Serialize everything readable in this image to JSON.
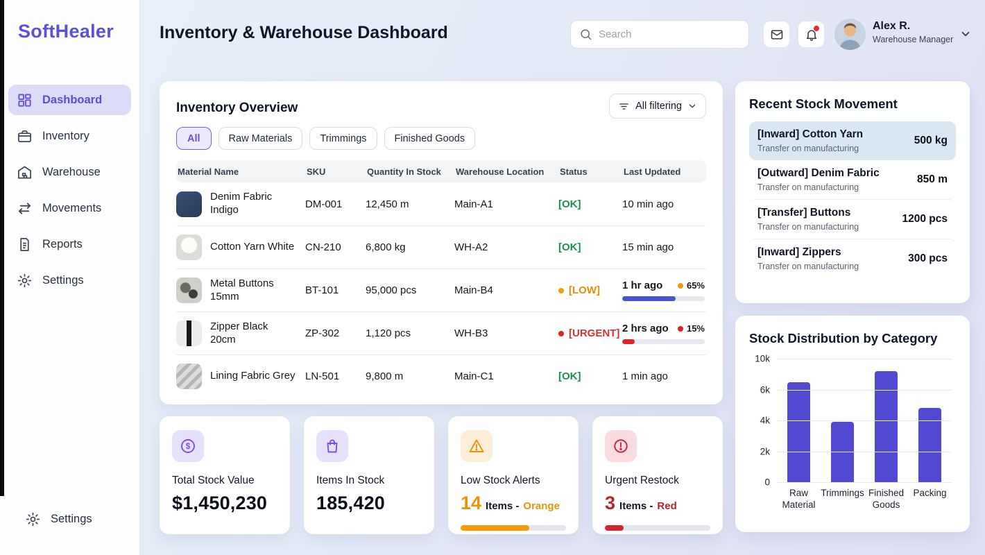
{
  "colors": {
    "accent": "#5b50dd",
    "status_ok": "#17904f",
    "status_low": "#e0900e",
    "status_urgent": "#d43330",
    "progress_blue": "#4553d6",
    "bar_indigo": "#5149d1",
    "left_edge": "#0c0c0c"
  },
  "sidebar": {
    "logo": "SoftHealer",
    "items": [
      {
        "label": "Dashboard",
        "icon": "dashboard-grid-icon",
        "active": true
      },
      {
        "label": "Inventory",
        "icon": "briefcase-icon",
        "active": false
      },
      {
        "label": "Warehouse",
        "icon": "warehouse-icon",
        "active": false
      },
      {
        "label": "Movements",
        "icon": "transfer-arrows-icon",
        "active": false
      },
      {
        "label": "Reports",
        "icon": "document-icon",
        "active": false
      },
      {
        "label": "Settings",
        "icon": "gear-icon",
        "active": false
      }
    ],
    "footer_item": {
      "label": "Settings",
      "icon": "gear-icon"
    }
  },
  "header": {
    "title": "Inventory & Warehouse Dashboard",
    "search_placeholder": "Search",
    "user": {
      "name": "Alex R.",
      "role": "Warehouse Manager"
    },
    "bell_has_unread": true
  },
  "inventory": {
    "title": "Inventory Overview",
    "filter_button_label": "All filtering",
    "tabs": [
      {
        "label": "All",
        "active": true
      },
      {
        "label": "Raw Materials",
        "active": false
      },
      {
        "label": "Trimmings",
        "active": false
      },
      {
        "label": "Finished Goods",
        "active": false
      }
    ],
    "columns": [
      "Material Name",
      "SKU",
      "Quantity In Stock",
      "Warehouse Location",
      "Status",
      "Last Updated"
    ],
    "rows": [
      {
        "name": "Denim Fabric Indigo",
        "sku": "DM-001",
        "qty": "12,450 m",
        "location": "Main-A1",
        "status": "OK",
        "status_label": "[OK]",
        "updated": "10 min ago",
        "thumb": "denim"
      },
      {
        "name": "Cotton Yarn White",
        "sku": "CN-210",
        "qty": "6,800 kg",
        "location": "WH-A2",
        "status": "OK",
        "status_label": "[OK]",
        "updated": "15 min ago",
        "thumb": "yarn"
      },
      {
        "name": "Metal Buttons 15mm",
        "sku": "BT-101",
        "qty": "95,000 pcs",
        "location": "Main-B4",
        "status": "LOW",
        "status_label": "[LOW]",
        "updated": "1 hr ago",
        "percent": "65%",
        "progress": 65,
        "thumb": "buttons"
      },
      {
        "name": "Zipper Black 20cm",
        "sku": "ZP-302",
        "qty": "1,120 pcs",
        "location": "WH-B3",
        "status": "URGENT",
        "status_label": "[URGENT]",
        "updated": "2 hrs ago",
        "percent": "15%",
        "progress": 15,
        "thumb": "zipper"
      },
      {
        "name": "Lining Fabric Grey",
        "sku": "LN-501",
        "qty": "9,800 m",
        "location": "Main-C1",
        "status": "OK",
        "status_label": "[OK]",
        "updated": "1 min ago",
        "thumb": "lining"
      }
    ]
  },
  "stats": [
    {
      "label": "Total Stock Value",
      "value": "$1,450,230",
      "icon": "dollar-circle-icon",
      "theme": "purple"
    },
    {
      "label": "Items In Stock",
      "value": "185,420",
      "icon": "shopping-bag-icon",
      "theme": "purple"
    },
    {
      "label": "Low Stock Alerts",
      "big": "14",
      "mid": "Items -",
      "highlight": "Orange",
      "icon": "warning-triangle-icon",
      "theme": "orange",
      "progress": 65,
      "bar_color": "#f59a0b"
    },
    {
      "label": "Urgent Restock",
      "big": "3",
      "mid": "Items -",
      "highlight": "Red",
      "icon": "alert-circle-icon",
      "theme": "red",
      "progress": 18,
      "bar_color": "#d5252f"
    }
  ],
  "movements": {
    "title": "Recent Stock Movement",
    "items": [
      {
        "title": "[Inward] Cotton Yarn",
        "subtitle": "Transfer on manufacturing",
        "qty": "500 kg",
        "highlighted": true
      },
      {
        "title": "[Outward] Denim Fabric",
        "subtitle": "Transfer on manufacturing",
        "qty": "850 m",
        "highlighted": false
      },
      {
        "title": "[Transfer] Buttons",
        "subtitle": "Transfer on manufacturing",
        "qty": "1200 pcs",
        "highlighted": false
      },
      {
        "title": "[Inward] Zippers",
        "subtitle": "Transfer on manufacturing",
        "qty": "300 pcs",
        "highlighted": false
      }
    ]
  },
  "chart_data": {
    "type": "bar",
    "title": "Stock Distribution by Category",
    "categories": [
      "Raw Material",
      "Trimmings",
      "Finished Goods",
      "Packing"
    ],
    "values": [
      6800,
      4000,
      8500,
      4800
    ],
    "y_ticks_top_to_bottom": [
      "10k",
      "6k",
      "4k",
      "2k",
      "0"
    ],
    "bar_heights_pct": [
      81,
      49,
      90,
      60
    ],
    "bar_color": "#5149d1",
    "xlabel": "",
    "ylabel": "",
    "ylim": [
      0,
      10000
    ],
    "grid": true,
    "legend": false
  }
}
